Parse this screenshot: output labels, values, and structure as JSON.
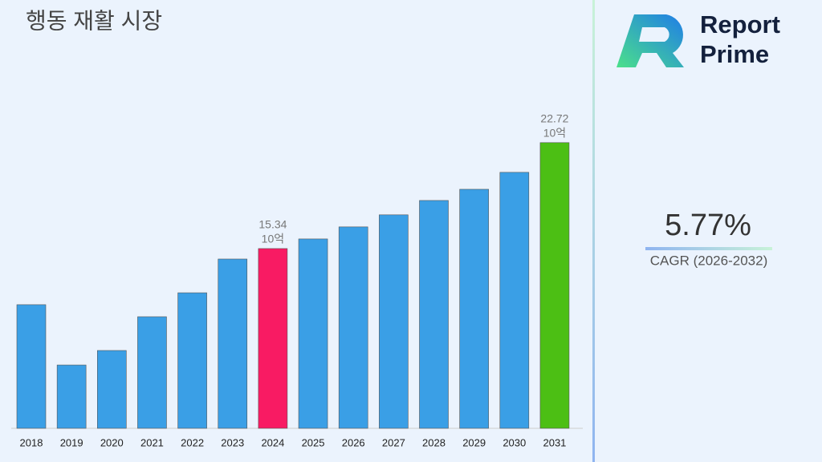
{
  "chart_data": {
    "type": "bar",
    "title": "행동 재활 시장",
    "categories": [
      "2018",
      "2019",
      "2020",
      "2021",
      "2022",
      "2023",
      "2024",
      "2025",
      "2026",
      "2027",
      "2028",
      "2029",
      "2030",
      "2031"
    ],
    "values": [
      11.43,
      7.23,
      8.24,
      10.59,
      12.26,
      14.61,
      15.34,
      16.01,
      16.85,
      17.69,
      18.69,
      19.47,
      20.65,
      22.72
    ],
    "value_labels": [
      null,
      null,
      null,
      null,
      null,
      null,
      "15.34",
      null,
      null,
      null,
      null,
      null,
      null,
      "22.72"
    ],
    "unit_label": "10억",
    "colors": [
      "#3a9fe6",
      "#3a9fe6",
      "#3a9fe6",
      "#3a9fe6",
      "#3a9fe6",
      "#3a9fe6",
      "#f81b63",
      "#3a9fe6",
      "#3a9fe6",
      "#3a9fe6",
      "#3a9fe6",
      "#3a9fe6",
      "#3a9fe6",
      "#4cbf14"
    ],
    "ylim": [
      2.82,
      25
    ]
  },
  "logo": {
    "line1": "Report",
    "line2": "Prime"
  },
  "cagr": {
    "value": "5.77%",
    "label": "CAGR (2026-2032)"
  }
}
